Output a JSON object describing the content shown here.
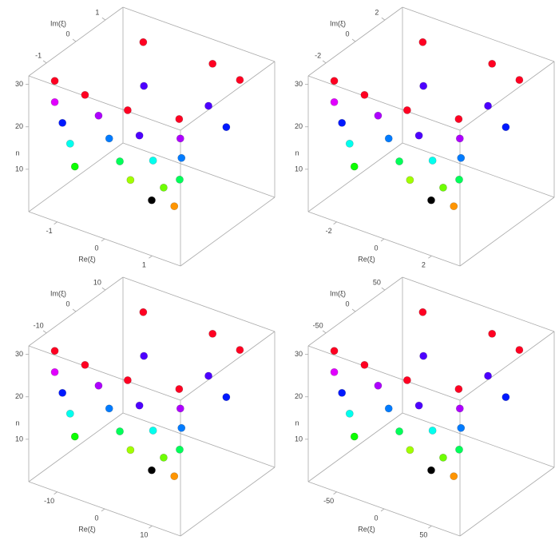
{
  "chart_data": [
    {
      "type": "scatter3d",
      "x_label": "Re(ξ)",
      "y_label": "Im(ξ)",
      "z_label": "n",
      "colormap": "hue",
      "xlim": [
        -1.6,
        1.6
      ],
      "ylim": [
        -1.6,
        1.6
      ],
      "zlim": [
        0,
        32
      ],
      "xticks": [
        -1,
        0,
        1
      ],
      "yticks": [
        -1,
        0,
        1
      ],
      "zticks": [
        10,
        20,
        30
      ],
      "x": [
        -1.3,
        -1.3,
        -1.2,
        -1.1,
        -1.0,
        -0.6,
        -0.5,
        -0.4,
        -0.3,
        -0.2,
        0.3,
        0.3,
        0.4,
        0.5,
        0.6,
        1.2,
        1.1,
        1.0,
        0.9,
        -0.8,
        -0.6,
        0.6,
        0.7,
        1.3,
        1.2,
        0
      ],
      "y": [
        -1.2,
        -1.2,
        -1.1,
        -1.0,
        -1.0,
        -1.3,
        -1.0,
        -0.8,
        -0.6,
        -0.4,
        -1.3,
        -0.9,
        -0.6,
        -0.4,
        -0.2,
        -1.0,
        -0.8,
        -0.6,
        -0.5,
        1.0,
        0.7,
        1.1,
        0.8,
        0.9,
        0.6,
        0
      ],
      "z": [
        30,
        25,
        20,
        15,
        10,
        30,
        24,
        18,
        12,
        7,
        30,
        22,
        15,
        8,
        3,
        30,
        24,
        18,
        12,
        30,
        22,
        30,
        22,
        30,
        20,
        1
      ]
    },
    {
      "type": "scatter3d",
      "x_label": "Re(ξ)",
      "y_label": "Im(ξ)",
      "z_label": "n",
      "colormap": "hue",
      "xlim": [
        -3.2,
        3.2
      ],
      "ylim": [
        -3.2,
        3.2
      ],
      "zlim": [
        0,
        32
      ],
      "xticks": [
        -2,
        0,
        2
      ],
      "yticks": [
        -2,
        0,
        2
      ],
      "zticks": [
        10,
        20,
        30
      ],
      "x": [
        -2.6,
        -2.6,
        -2.4,
        -2.2,
        -2.0,
        -1.2,
        -1.0,
        -0.8,
        -0.6,
        -0.4,
        0.6,
        0.6,
        0.8,
        1.0,
        1.2,
        2.4,
        2.2,
        2.0,
        1.8,
        -1.6,
        -1.2,
        1.2,
        1.4,
        2.6,
        2.4,
        0
      ],
      "y": [
        -2.4,
        -2.4,
        -2.2,
        -2.0,
        -2.0,
        -2.6,
        -2.0,
        -1.6,
        -1.2,
        -0.8,
        -2.6,
        -1.8,
        -1.2,
        -0.8,
        -0.4,
        -2.0,
        -1.6,
        -1.2,
        -1.0,
        2.0,
        1.4,
        2.2,
        1.6,
        1.8,
        1.2,
        0
      ],
      "z": [
        30,
        25,
        20,
        15,
        10,
        30,
        24,
        18,
        12,
        7,
        30,
        22,
        15,
        8,
        3,
        30,
        24,
        18,
        12,
        30,
        22,
        30,
        22,
        30,
        20,
        1
      ]
    },
    {
      "type": "scatter3d",
      "x_label": "Re(ξ)",
      "y_label": "Im(ξ)",
      "z_label": "n",
      "colormap": "hue",
      "xlim": [
        -16,
        16
      ],
      "ylim": [
        -16,
        16
      ],
      "zlim": [
        0,
        32
      ],
      "xticks": [
        -10,
        0,
        10
      ],
      "yticks": [
        -10,
        0,
        10
      ],
      "zticks": [
        10,
        20,
        30
      ],
      "x": [
        -13,
        -13,
        -12,
        -11,
        -10,
        -6,
        -5,
        -4,
        -3,
        -2,
        3,
        3,
        4,
        5,
        6,
        12,
        11,
        10,
        9,
        -8,
        -6,
        6,
        7,
        13,
        12,
        0
      ],
      "y": [
        -12,
        -12,
        -11,
        -10,
        -10,
        -13,
        -10,
        -8,
        -6,
        -4,
        -13,
        -9,
        -6,
        -4,
        -2,
        -10,
        -8,
        -6,
        -5,
        10,
        7,
        11,
        8,
        9,
        6,
        0
      ],
      "z": [
        30,
        25,
        20,
        15,
        10,
        30,
        24,
        18,
        12,
        7,
        30,
        22,
        15,
        8,
        3,
        30,
        24,
        18,
        12,
        30,
        22,
        30,
        22,
        30,
        20,
        1
      ]
    },
    {
      "type": "scatter3d",
      "x_label": "Re(ξ)",
      "y_label": "Im(ξ)",
      "z_label": "n",
      "colormap": "hue",
      "xlim": [
        -80,
        80
      ],
      "ylim": [
        -80,
        80
      ],
      "zlim": [
        0,
        32
      ],
      "xticks": [
        -50,
        0,
        50
      ],
      "yticks": [
        -50,
        0,
        50
      ],
      "zticks": [
        10,
        20,
        30
      ],
      "x": [
        -65,
        -65,
        -60,
        -55,
        -50,
        -30,
        -25,
        -20,
        -15,
        -10,
        15,
        15,
        20,
        25,
        30,
        60,
        55,
        50,
        45,
        -40,
        -30,
        30,
        35,
        65,
        60,
        0
      ],
      "y": [
        -60,
        -60,
        -55,
        -50,
        -50,
        -65,
        -50,
        -40,
        -30,
        -20,
        -65,
        -45,
        -30,
        -20,
        -10,
        -50,
        -40,
        -30,
        -25,
        50,
        35,
        55,
        40,
        45,
        30,
        0
      ],
      "z": [
        30,
        25,
        20,
        15,
        10,
        30,
        24,
        18,
        12,
        7,
        30,
        22,
        15,
        8,
        3,
        30,
        24,
        18,
        12,
        30,
        22,
        30,
        22,
        30,
        20,
        1
      ]
    }
  ]
}
